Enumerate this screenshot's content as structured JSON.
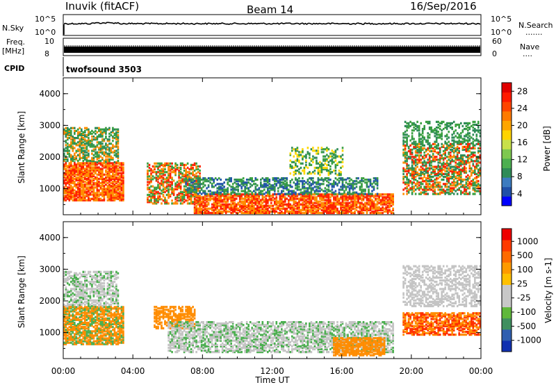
{
  "header": {
    "station": "Inuvik (fitACF)",
    "beam": "Beam 14",
    "date": "16/Sep/2016"
  },
  "nsky_panel": {
    "left_label": "N.Sky",
    "right_label": "N.Search",
    "left_ticks": [
      "10^5",
      "10^0"
    ],
    "right_ticks": [
      "10^5",
      "10^0"
    ],
    "legend_marker": "......."
  },
  "freq_panel": {
    "left_label_1": "Freq.",
    "left_label_2": "[MHz]",
    "right_label": "Nave",
    "left_ticks": [
      "10",
      "8"
    ],
    "right_ticks": [
      "60",
      "0"
    ],
    "legend_marker": "...."
  },
  "cpid": {
    "label": "CPID",
    "value": "twofsound 3503"
  },
  "chart_data": [
    {
      "type": "heatmap",
      "parameter": "power",
      "ylabel": "Slant Range [km]",
      "ylim": [
        180,
        4500
      ],
      "yticks": [
        "1000",
        "2000",
        "3000",
        "4000"
      ],
      "colorbar_label": "Power [dB]",
      "colorbar_ticks": [
        "4",
        "8",
        "12",
        "16",
        "20",
        "24",
        "28"
      ],
      "colorbar_colors": [
        "#0000ff",
        "#1f4fa8",
        "#3c7bbf",
        "#2e8b57",
        "#4caf50",
        "#7ec850",
        "#c8e04a",
        "#ffd400",
        "#ffa500",
        "#ff7a00",
        "#ff4500",
        "#ff1a00",
        "#e00000"
      ]
    },
    {
      "type": "heatmap",
      "parameter": "velocity",
      "ylabel": "Slant Range [km]",
      "ylim": [
        180,
        4500
      ],
      "yticks": [
        "1000",
        "2000",
        "3000",
        "4000"
      ],
      "colorbar_label": "Velocity [m s-1]",
      "colorbar_ticks": [
        "1000",
        "500",
        "100",
        "25",
        "-25",
        "-100",
        "-500",
        "-1000"
      ],
      "colorbar_colors": [
        "#1030b0",
        "#2f5fb0",
        "#3f8f5f",
        "#5fb83a",
        "#c8c8c8",
        "#c8c8c8",
        "#ffc000",
        "#ff9a00",
        "#ff6a00",
        "#ff3a00",
        "#ee0000"
      ]
    }
  ],
  "time_axis": {
    "label": "Time UT",
    "ticks": [
      "00:00",
      "04:00",
      "08:00",
      "12:00",
      "16:00",
      "20:00",
      "00:00"
    ]
  },
  "colors": {
    "power_red": "#ff2200",
    "power_orange": "#ff8c00",
    "power_yellow": "#ffd700",
    "power_green": "#3aa040",
    "power_teal": "#2e8b57",
    "power_blue": "#2255aa",
    "vel_gray": "#c4c4c4",
    "vel_orange": "#ff8c00",
    "vel_red": "#ff3000",
    "vel_green": "#4caf50",
    "vel_blue": "#2a5fb0"
  }
}
